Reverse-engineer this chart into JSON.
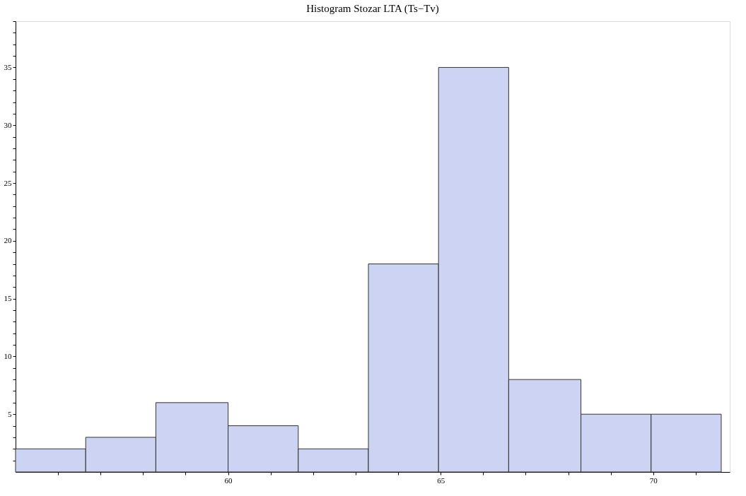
{
  "chart_data": {
    "type": "histogram",
    "title": "Histogram Stozar LTA (Ts−Tv)",
    "bins": [
      55,
      56.65,
      58.3,
      60,
      61.65,
      63.3,
      64.95,
      66.6,
      68.3,
      69.95,
      71.6
    ],
    "values": [
      2,
      3,
      6,
      4,
      2,
      18,
      35,
      8,
      5,
      5
    ],
    "color": "#ccd3f3",
    "xlim": [
      55,
      71.8
    ],
    "ylim": [
      0,
      39
    ],
    "xticks": [
      {
        "value": 56,
        "label": null
      },
      {
        "value": 57,
        "label": null
      },
      {
        "value": 58,
        "label": null
      },
      {
        "value": 59,
        "label": null
      },
      60,
      {
        "value": 61,
        "label": null
      },
      {
        "value": 62,
        "label": null
      },
      {
        "value": 63,
        "label": null
      },
      {
        "value": 64,
        "label": null
      },
      65,
      {
        "value": 66,
        "label": null
      },
      {
        "value": 67,
        "label": null
      },
      {
        "value": 68,
        "label": null
      },
      {
        "value": 69,
        "label": null
      },
      70,
      {
        "value": 71,
        "label": null
      }
    ],
    "yticks": [
      {
        "value": 1,
        "label": null
      },
      {
        "value": 2,
        "label": null
      },
      {
        "value": 3,
        "label": null
      },
      {
        "value": 4,
        "label": null
      },
      5,
      {
        "value": 6,
        "label": null
      },
      {
        "value": 7,
        "label": null
      },
      {
        "value": 8,
        "label": null
      },
      {
        "value": 9,
        "label": null
      },
      10,
      {
        "value": 11,
        "label": null
      },
      {
        "value": 12,
        "label": null
      },
      {
        "value": 13,
        "label": null
      },
      {
        "value": 14,
        "label": null
      },
      15,
      {
        "value": 16,
        "label": null
      },
      {
        "value": 17,
        "label": null
      },
      {
        "value": 18,
        "label": null
      },
      {
        "value": 19,
        "label": null
      },
      20,
      {
        "value": 21,
        "label": null
      },
      {
        "value": 22,
        "label": null
      },
      {
        "value": 23,
        "label": null
      },
      {
        "value": 24,
        "label": null
      },
      25,
      {
        "value": 26,
        "label": null
      },
      {
        "value": 27,
        "label": null
      },
      {
        "value": 28,
        "label": null
      },
      {
        "value": 29,
        "label": null
      },
      30,
      {
        "value": 31,
        "label": null
      },
      {
        "value": 32,
        "label": null
      },
      {
        "value": 33,
        "label": null
      },
      {
        "value": 34,
        "label": null
      },
      35,
      {
        "value": 36,
        "label": null
      },
      {
        "value": 37,
        "label": null
      },
      {
        "value": 38,
        "label": null
      },
      {
        "value": 39,
        "label": null
      }
    ],
    "grid": false
  }
}
